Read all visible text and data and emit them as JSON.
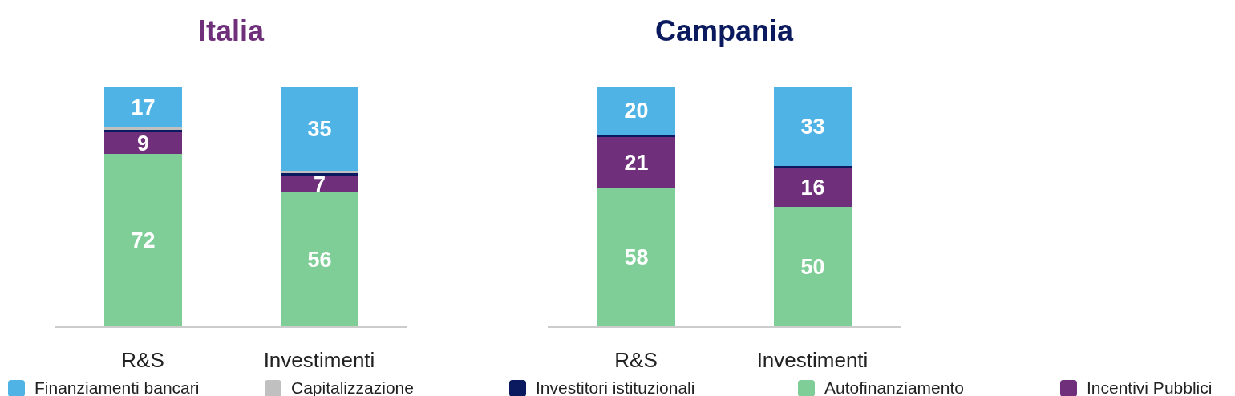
{
  "chart_data": [
    {
      "type": "bar",
      "title": "Italia",
      "categories": [
        "R&S",
        "Investimenti"
      ],
      "stacked": true,
      "legend": "bottom",
      "series": [
        {
          "name": "Autofinanziamento",
          "color": "#7fce98",
          "values": [
            72,
            56
          ],
          "value_labels": [
            "72",
            "56"
          ]
        },
        {
          "name": "Incentivi Pubblici",
          "color": "#6f2f7b",
          "values": [
            9,
            7
          ],
          "value_labels": [
            "9",
            "7"
          ]
        },
        {
          "name": "Investitori istituzionali",
          "color": "#0b1a5e",
          "values": [
            1,
            1
          ],
          "value_labels": [
            null,
            null
          ]
        },
        {
          "name": "Capitalizzazione",
          "color": "#c0c0c0",
          "values": [
            1,
            1
          ],
          "value_labels": [
            null,
            null
          ]
        },
        {
          "name": "Finanziamenti bancari",
          "color": "#4fb3e6",
          "values": [
            17,
            35
          ],
          "value_labels": [
            "17",
            "35"
          ]
        }
      ]
    },
    {
      "type": "bar",
      "title": "Campania",
      "categories": [
        "R&S",
        "Investimenti"
      ],
      "stacked": true,
      "series": [
        {
          "color": "#7fce98",
          "values": [
            58,
            50
          ],
          "value_labels": [
            "58",
            "50"
          ]
        },
        {
          "color": "#6f2f7b",
          "values": [
            21,
            16
          ],
          "value_labels": [
            "21",
            "16"
          ]
        },
        {
          "color": "#0b1a5e",
          "values": [
            1,
            1
          ],
          "value_labels": [
            null,
            null
          ]
        },
        {
          "color": "#c0c0c0",
          "values": [
            null,
            null
          ],
          "value_labels": [
            null,
            null
          ]
        },
        {
          "color": "#4fb3e6",
          "values": [
            20,
            33
          ],
          "value_labels": [
            "20",
            "33"
          ]
        }
      ]
    }
  ]
}
